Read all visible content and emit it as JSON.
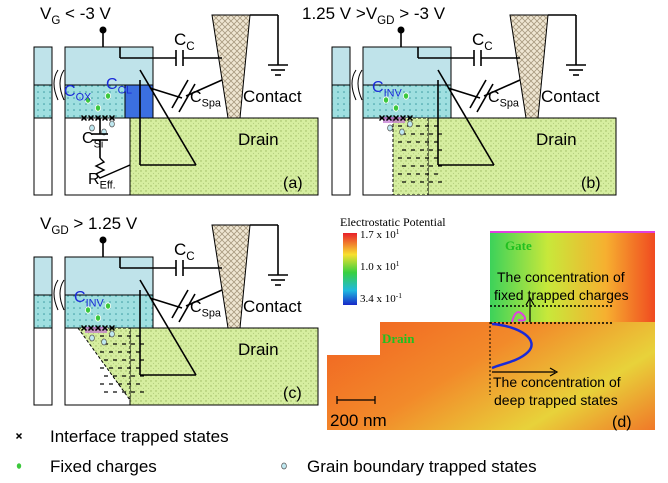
{
  "panels": [
    {
      "title": {
        "base": "V",
        "sub": "G",
        "rest": " < -3 V"
      },
      "cc": {
        "base": "C",
        "sub": "C"
      },
      "cap": {
        "base": "C",
        "sub": "OX"
      },
      "col": {
        "base": "C",
        "sub": "OL"
      },
      "cspa": {
        "base": "C",
        "sub": "Spa"
      },
      "contact": "Contact",
      "csi": {
        "base": "C",
        "sub": "Si"
      },
      "reff": {
        "base": "R",
        "sub": "Eff."
      },
      "drain": "Drain",
      "tag": "(a)"
    },
    {
      "title": {
        "pre": "1.25 V >",
        "base": "V",
        "sub": "GD",
        "rest": " > -3 V"
      },
      "cc": {
        "base": "C",
        "sub": "C"
      },
      "cap": {
        "base": "C",
        "sub": "INV"
      },
      "cspa": {
        "base": "C",
        "sub": "Spa"
      },
      "contact": "Contact",
      "drain": "Drain",
      "tag": "(b)"
    },
    {
      "title": {
        "base": "V",
        "sub": "GD",
        "rest": " > 1.25 V"
      },
      "cc": {
        "base": "C",
        "sub": "C"
      },
      "cap": {
        "base": "C",
        "sub": "INV"
      },
      "cspa": {
        "base": "C",
        "sub": "Spa"
      },
      "contact": "Contact",
      "drain": "Drain",
      "tag": "(c)"
    }
  ],
  "simulation": {
    "colorbar_title": "Electrostatic Potential",
    "colorbar_labels": [
      {
        "base": "1.7 x 10",
        "sup": "1"
      },
      {
        "base": "1.0 x 10",
        "sup": "1"
      },
      {
        "base": "3.4 x 10",
        "sup": "-1"
      }
    ],
    "gate": "Gate",
    "drain": "Drain",
    "note_fixed": [
      "The concentration of",
      "fixed trapped charges"
    ],
    "note_deep": [
      "The concentration of",
      "deep trapped states"
    ],
    "scale": "200 nm",
    "tag": "(d)"
  },
  "legend": {
    "interface": "Interface trapped states",
    "fixed": "Fixed charges",
    "grain": "Grain boundary trapped states"
  }
}
